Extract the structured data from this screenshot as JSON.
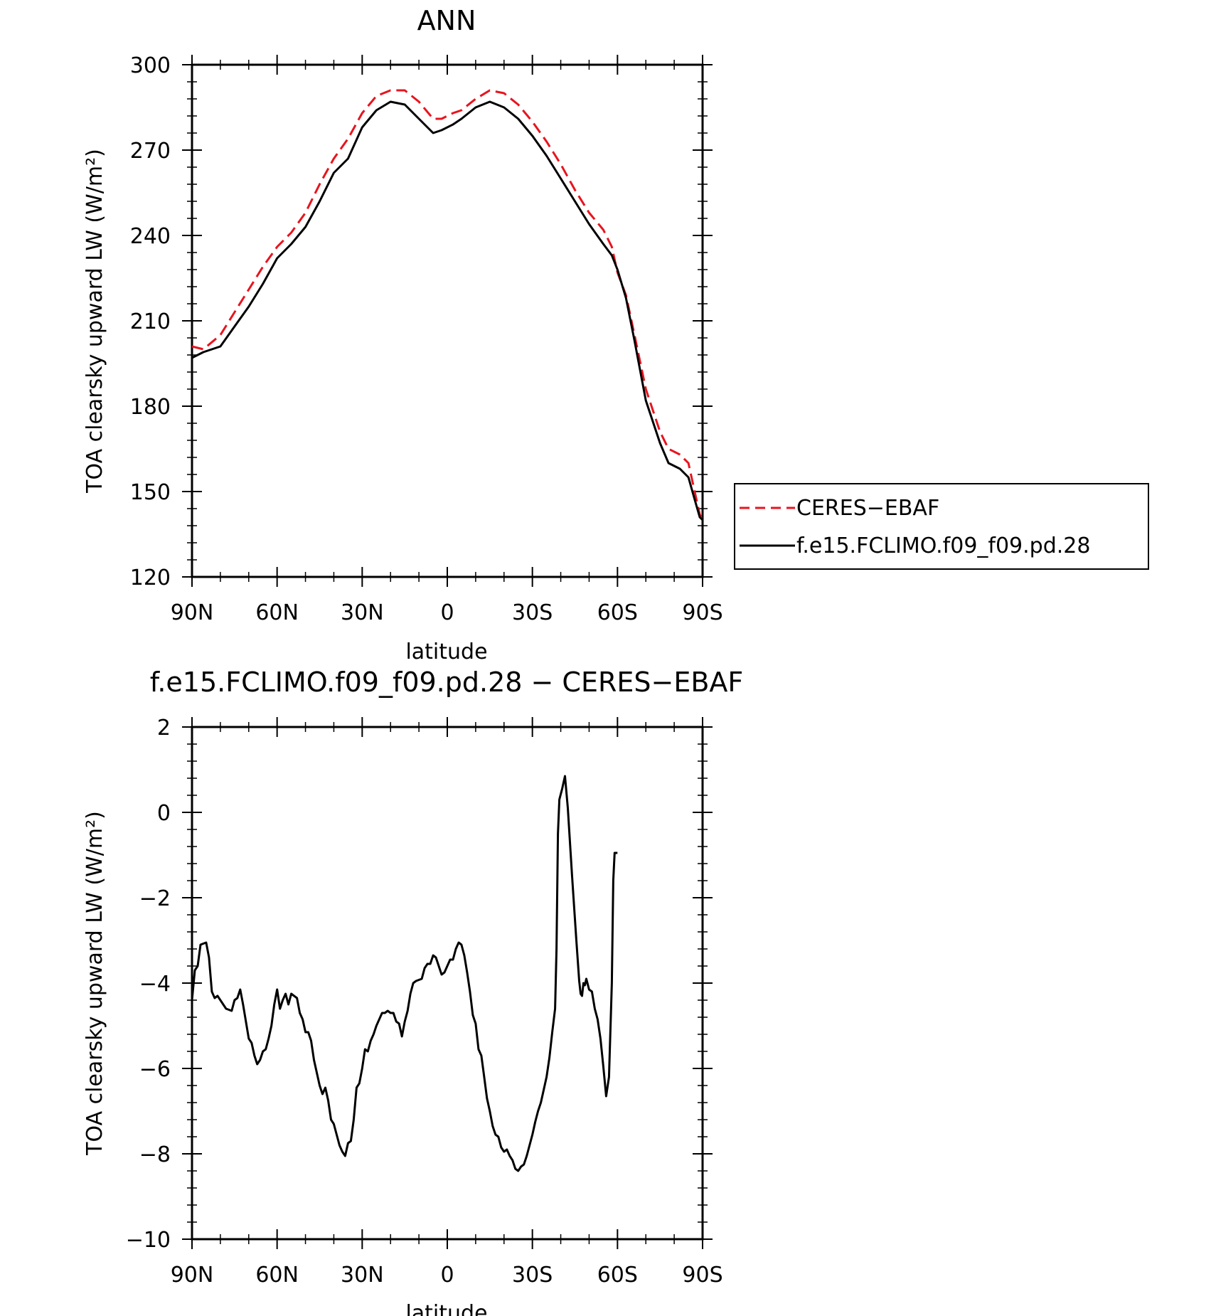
{
  "chart_data": [
    {
      "type": "line",
      "title": "ANN",
      "xlabel": "latitude",
      "ylabel": "TOA clearsky upward LW (W/m²)",
      "ylim": [
        120,
        300
      ],
      "yticks": [
        "120",
        "150",
        "180",
        "210",
        "240",
        "270",
        "300"
      ],
      "xlim": [
        90,
        -90
      ],
      "xticks": [
        {
          "label": "90N",
          "value": 90
        },
        {
          "label": "60N",
          "value": 60
        },
        {
          "label": "30N",
          "value": 30
        },
        {
          "label": "0",
          "value": 0
        },
        {
          "label": "30S",
          "value": -30
        },
        {
          "label": "60S",
          "value": -60
        },
        {
          "label": "90S",
          "value": -90
        }
      ],
      "legend": {
        "position": "right",
        "entries": [
          "CERES−EBAF",
          "f.e15.FCLIMO.f09_f09.pd.28"
        ]
      },
      "series": [
        {
          "name": "CERES−EBAF",
          "color": "#e8141e",
          "dash": true,
          "points": [
            [
              90,
              201
            ],
            [
              86,
              200
            ],
            [
              80,
              205
            ],
            [
              75,
              213
            ],
            [
              70,
              221
            ],
            [
              65,
              229
            ],
            [
              60,
              236
            ],
            [
              55,
              241
            ],
            [
              50,
              248
            ],
            [
              45,
              258
            ],
            [
              40,
              267
            ],
            [
              35,
              274
            ],
            [
              30,
              283
            ],
            [
              25,
              289
            ],
            [
              20,
              291
            ],
            [
              15,
              291
            ],
            [
              10,
              287
            ],
            [
              5,
              281
            ],
            [
              2,
              281
            ],
            [
              -2,
              283
            ],
            [
              -5,
              284
            ],
            [
              -10,
              288
            ],
            [
              -15,
              291
            ],
            [
              -20,
              290
            ],
            [
              -25,
              286
            ],
            [
              -30,
              280
            ],
            [
              -35,
              273
            ],
            [
              -40,
              265
            ],
            [
              -45,
              256
            ],
            [
              -50,
              248
            ],
            [
              -55,
              242
            ],
            [
              -58,
              236
            ],
            [
              -60,
              227
            ],
            [
              -63,
              219
            ],
            [
              -66,
              205
            ],
            [
              -70,
              186
            ],
            [
              -75,
              171
            ],
            [
              -78,
              165
            ],
            [
              -82,
              163
            ],
            [
              -85,
              160
            ],
            [
              -87,
              151
            ],
            [
              -89,
              142
            ],
            [
              -90,
              140
            ]
          ]
        },
        {
          "name": "f.e15.FCLIMO.f09_f09.pd.28",
          "color": "#000000",
          "dash": false,
          "points": [
            [
              90,
              197
            ],
            [
              86,
              199
            ],
            [
              80,
              201
            ],
            [
              75,
              208
            ],
            [
              70,
              215
            ],
            [
              65,
              223
            ],
            [
              60,
              232
            ],
            [
              55,
              237
            ],
            [
              50,
              243
            ],
            [
              45,
              252
            ],
            [
              40,
              262
            ],
            [
              35,
              267
            ],
            [
              30,
              278
            ],
            [
              25,
              284
            ],
            [
              20,
              287
            ],
            [
              15,
              286
            ],
            [
              10,
              281
            ],
            [
              5,
              276
            ],
            [
              2,
              277
            ],
            [
              -2,
              279
            ],
            [
              -5,
              281
            ],
            [
              -10,
              285
            ],
            [
              -15,
              287
            ],
            [
              -20,
              285
            ],
            [
              -25,
              281
            ],
            [
              -30,
              275
            ],
            [
              -35,
              268
            ],
            [
              -40,
              260
            ],
            [
              -45,
              252
            ],
            [
              -50,
              244
            ],
            [
              -55,
              237
            ],
            [
              -58,
              233
            ],
            [
              -60,
              228
            ],
            [
              -63,
              218
            ],
            [
              -66,
              203
            ],
            [
              -70,
              182
            ],
            [
              -75,
              167
            ],
            [
              -78,
              160
            ],
            [
              -82,
              158
            ],
            [
              -85,
              155
            ],
            [
              -87,
              148
            ],
            [
              -89,
              141
            ],
            [
              -90,
              140
            ]
          ]
        }
      ]
    },
    {
      "type": "line",
      "title": "f.e15.FCLIMO.f09_f09.pd.28 − CERES−EBAF",
      "xlabel": "latitude",
      "ylabel": "TOA clearsky upward LW (W/m²)",
      "ylim": [
        -10,
        2
      ],
      "yticks": [
        "−10",
        "−8",
        "−6",
        "−4",
        "−2",
        "0",
        "2"
      ],
      "xlim": [
        90,
        -90
      ],
      "xticks": [
        {
          "label": "90N",
          "value": 90
        },
        {
          "label": "60N",
          "value": 60
        },
        {
          "label": "30N",
          "value": 30
        },
        {
          "label": "0",
          "value": 0
        },
        {
          "label": "30S",
          "value": -30
        },
        {
          "label": "60S",
          "value": -60
        },
        {
          "label": "90S",
          "value": -90
        }
      ],
      "series": [
        {
          "color": "#000000",
          "points": [
            [
              90,
              -4.4
            ],
            [
              89,
              -3.7
            ],
            [
              88,
              -3.6
            ],
            [
              87,
              -3.1
            ],
            [
              85,
              -3.05
            ],
            [
              84,
              -3.4
            ],
            [
              83,
              -4.2
            ],
            [
              82,
              -4.35
            ],
            [
              81,
              -4.3
            ],
            [
              80,
              -4.4
            ],
            [
              78,
              -4.6
            ],
            [
              76,
              -4.65
            ],
            [
              75,
              -4.4
            ],
            [
              74,
              -4.35
            ],
            [
              73,
              -4.15
            ],
            [
              72,
              -4.5
            ],
            [
              70,
              -5.3
            ],
            [
              69,
              -5.4
            ],
            [
              68,
              -5.7
            ],
            [
              67,
              -5.9
            ],
            [
              66,
              -5.8
            ],
            [
              65,
              -5.6
            ],
            [
              64,
              -5.55
            ],
            [
              63,
              -5.3
            ],
            [
              62,
              -5.0
            ],
            [
              61,
              -4.5
            ],
            [
              60,
              -4.15
            ],
            [
              59,
              -4.6
            ],
            [
              58,
              -4.4
            ],
            [
              57,
              -4.25
            ],
            [
              56,
              -4.5
            ],
            [
              55,
              -4.25
            ],
            [
              53,
              -4.35
            ],
            [
              52,
              -4.7
            ],
            [
              51,
              -4.85
            ],
            [
              50,
              -5.15
            ],
            [
              49,
              -5.15
            ],
            [
              48,
              -5.35
            ],
            [
              47,
              -5.8
            ],
            [
              45,
              -6.4
            ],
            [
              44,
              -6.6
            ],
            [
              43,
              -6.45
            ],
            [
              42,
              -6.75
            ],
            [
              41,
              -7.2
            ],
            [
              40,
              -7.3
            ],
            [
              38,
              -7.8
            ],
            [
              37,
              -7.95
            ],
            [
              36,
              -8.05
            ],
            [
              35,
              -7.75
            ],
            [
              34,
              -7.7
            ],
            [
              33,
              -7.2
            ],
            [
              32,
              -6.45
            ],
            [
              31,
              -6.35
            ],
            [
              30,
              -6.0
            ],
            [
              29,
              -5.55
            ],
            [
              28,
              -5.6
            ],
            [
              27,
              -5.35
            ],
            [
              26,
              -5.2
            ],
            [
              25,
              -5.0
            ],
            [
              24,
              -4.85
            ],
            [
              23,
              -4.7
            ],
            [
              22,
              -4.7
            ],
            [
              21,
              -4.65
            ],
            [
              20,
              -4.7
            ],
            [
              19,
              -4.7
            ],
            [
              18,
              -4.9
            ],
            [
              17,
              -4.95
            ],
            [
              16,
              -5.25
            ],
            [
              15,
              -4.9
            ],
            [
              14,
              -4.65
            ],
            [
              13,
              -4.25
            ],
            [
              12,
              -4.0
            ],
            [
              11,
              -3.95
            ],
            [
              9,
              -3.9
            ],
            [
              8,
              -3.65
            ],
            [
              7,
              -3.55
            ],
            [
              6,
              -3.55
            ],
            [
              5,
              -3.35
            ],
            [
              4,
              -3.4
            ],
            [
              3,
              -3.6
            ],
            [
              2,
              -3.8
            ],
            [
              1,
              -3.75
            ],
            [
              0,
              -3.6
            ],
            [
              -1,
              -3.45
            ],
            [
              -2,
              -3.45
            ],
            [
              -3,
              -3.2
            ],
            [
              -4,
              -3.05
            ],
            [
              -5,
              -3.1
            ],
            [
              -6,
              -3.35
            ],
            [
              -7,
              -3.75
            ],
            [
              -8,
              -4.2
            ],
            [
              -9,
              -4.75
            ],
            [
              -10,
              -4.95
            ],
            [
              -11,
              -5.55
            ],
            [
              -12,
              -5.7
            ],
            [
              -13,
              -6.2
            ],
            [
              -14,
              -6.7
            ],
            [
              -15,
              -7.0
            ],
            [
              -16,
              -7.35
            ],
            [
              -17,
              -7.55
            ],
            [
              -18,
              -7.6
            ],
            [
              -19,
              -7.85
            ],
            [
              -20,
              -7.95
            ],
            [
              -21,
              -7.9
            ],
            [
              -22,
              -8.05
            ],
            [
              -23,
              -8.15
            ],
            [
              -24,
              -8.35
            ],
            [
              -25,
              -8.4
            ],
            [
              -26,
              -8.3
            ],
            [
              -27,
              -8.25
            ],
            [
              -28,
              -8.05
            ],
            [
              -29,
              -7.8
            ],
            [
              -30,
              -7.55
            ],
            [
              -31,
              -7.25
            ],
            [
              -32,
              -7.0
            ],
            [
              -33,
              -6.8
            ],
            [
              -34,
              -6.5
            ],
            [
              -35,
              -6.2
            ],
            [
              -36,
              -5.75
            ],
            [
              -37,
              -5.15
            ],
            [
              -38,
              -4.6
            ],
            [
              -38.5,
              -3.2
            ],
            [
              -39,
              -0.5
            ],
            [
              -39.5,
              0.3
            ],
            [
              -40.5,
              0.55
            ],
            [
              -41.5,
              0.85
            ],
            [
              -42.5,
              0.1
            ],
            [
              -44,
              -1.5
            ],
            [
              -45.5,
              -3.0
            ],
            [
              -46.5,
              -3.95
            ],
            [
              -47,
              -4.25
            ],
            [
              -47.5,
              -4.3
            ],
            [
              -48,
              -4.0
            ],
            [
              -48.5,
              -4.05
            ],
            [
              -49,
              -3.9
            ],
            [
              -50,
              -4.15
            ],
            [
              -51,
              -4.2
            ],
            [
              -52,
              -4.6
            ],
            [
              -53,
              -4.85
            ],
            [
              -54,
              -5.3
            ],
            [
              -55,
              -5.95
            ],
            [
              -56,
              -6.65
            ],
            [
              -57,
              -6.2
            ],
            [
              -58,
              -4.0
            ],
            [
              -58.5,
              -1.6
            ],
            [
              -59,
              -0.95
            ],
            [
              -60,
              -0.95
            ]
          ]
        }
      ]
    }
  ]
}
